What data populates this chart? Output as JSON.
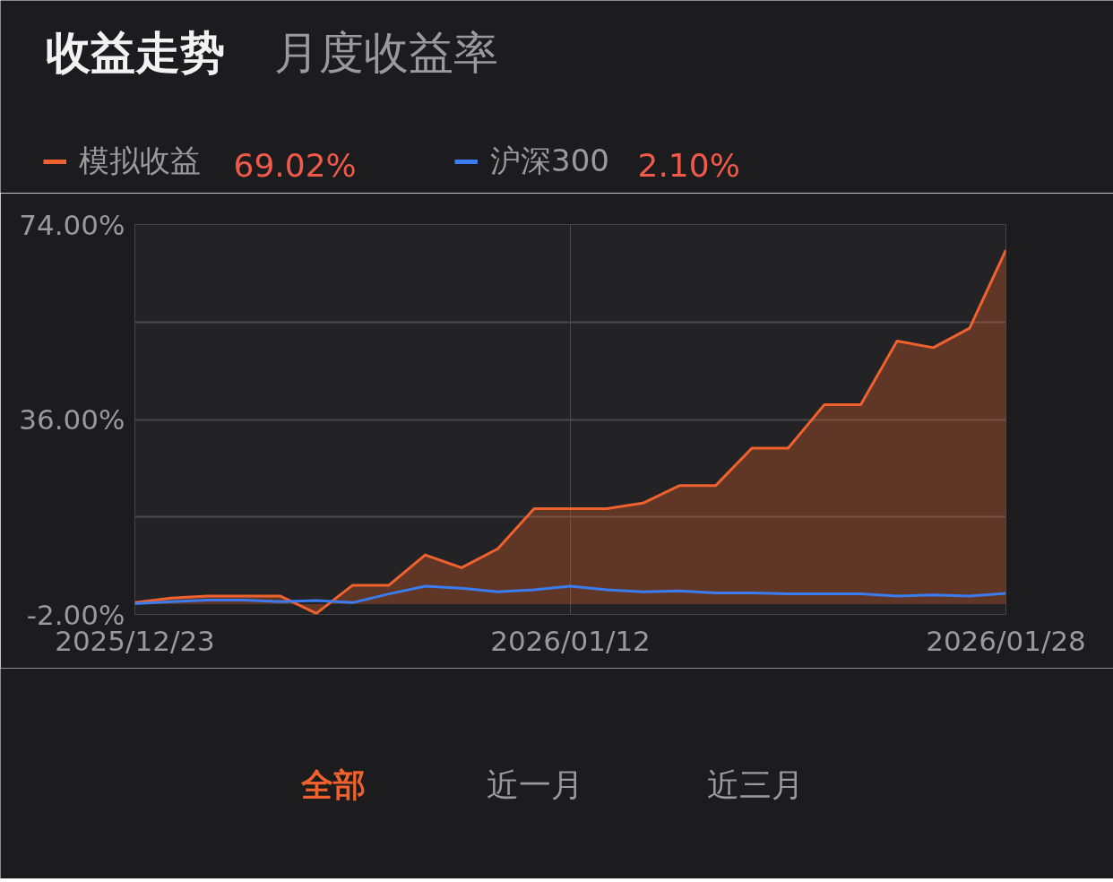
{
  "chart_data": {
    "type": "line",
    "title": "收益走势",
    "subtitle": "月度收益率",
    "categories": [
      "2025/12/23",
      null,
      null,
      null,
      null,
      null,
      null,
      null,
      null,
      null,
      null,
      null,
      "2026/01/12",
      null,
      null,
      null,
      null,
      null,
      null,
      null,
      null,
      null,
      null,
      null,
      "2026/01/28"
    ],
    "series": [
      {
        "name": "模拟收益",
        "type": "area",
        "color": "#f0622d",
        "values": [
          0.3,
          1.2,
          1.6,
          1.6,
          1.6,
          -1.8,
          3.7,
          3.7,
          9.6,
          7.1,
          10.8,
          18.6,
          18.6,
          18.6,
          19.7,
          23.1,
          23.1,
          30.4,
          30.4,
          38.9,
          38.9,
          51.3,
          50.0,
          53.8,
          69.02
        ]
      },
      {
        "name": "沪深300",
        "color": "#3b7cf0",
        "values": [
          0.1,
          0.5,
          0.8,
          0.8,
          0.5,
          0.7,
          0.3,
          2.0,
          3.5,
          3.1,
          2.4,
          2.8,
          3.5,
          2.8,
          2.4,
          2.6,
          2.2,
          2.2,
          2.0,
          2.0,
          2.0,
          1.6,
          1.8,
          1.6,
          2.1
        ]
      }
    ],
    "ylim": [
      -2,
      74
    ],
    "yticks": [
      {
        "value": -2,
        "label": "-2.00%"
      },
      {
        "value": 17,
        "label": null
      },
      {
        "value": 36,
        "label": "36.00%"
      },
      {
        "value": 55,
        "label": null
      },
      {
        "value": 74,
        "label": "74.00%"
      }
    ],
    "grid": true,
    "legend": "top left",
    "annotations": [
      "69.02%",
      "2.10%",
      "全部",
      "近一月",
      "近三月"
    ]
  }
}
